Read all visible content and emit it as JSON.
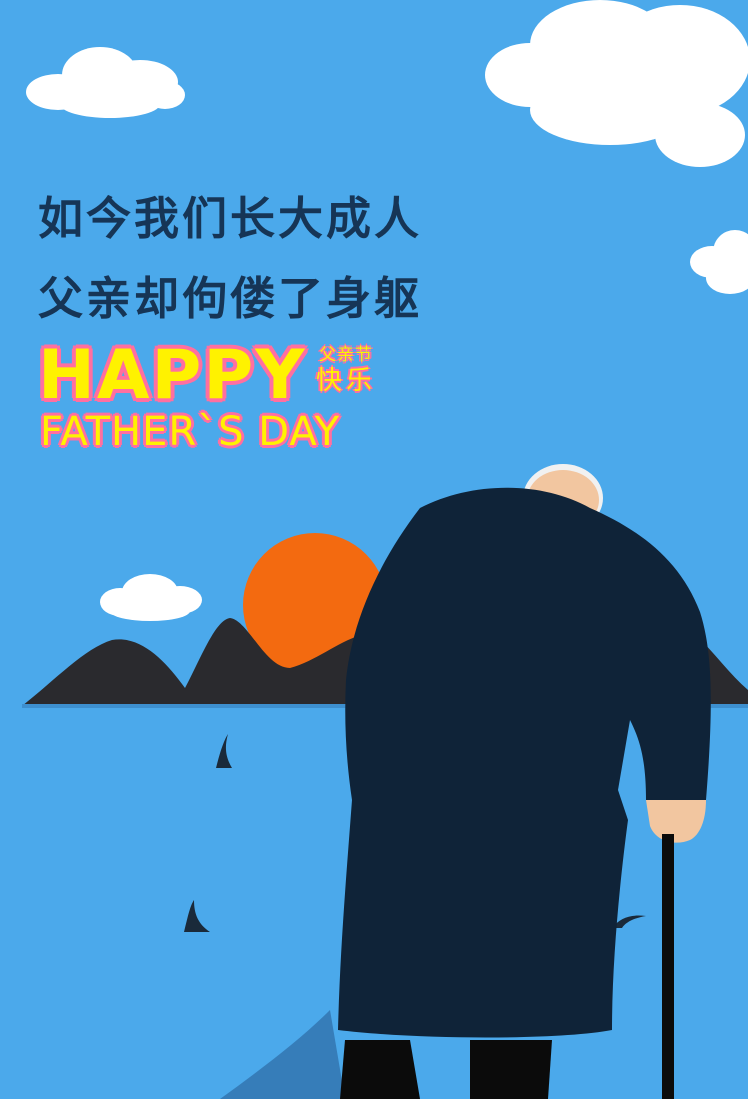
{
  "poster": {
    "headline_lines": [
      "如今我们长大成人",
      "父亲却佝偻了身躯"
    ],
    "happy": "HAPPY",
    "badge_top": "父亲节",
    "badge_bottom": "快乐",
    "fathers_day": "FATHER`S DAY"
  },
  "colors": {
    "sky": "#4ba9eb",
    "headline": "#163556",
    "title_fill": "#fff200",
    "title_outline": "#ff6fa0",
    "sun": "#f36a10",
    "mountains": "#2a2a2e",
    "coat": "#0f2338",
    "cloud": "#ffffff"
  },
  "icons": [
    "cloud-icon",
    "sun-icon",
    "mountain-icon",
    "old-man-with-cane-icon"
  ]
}
